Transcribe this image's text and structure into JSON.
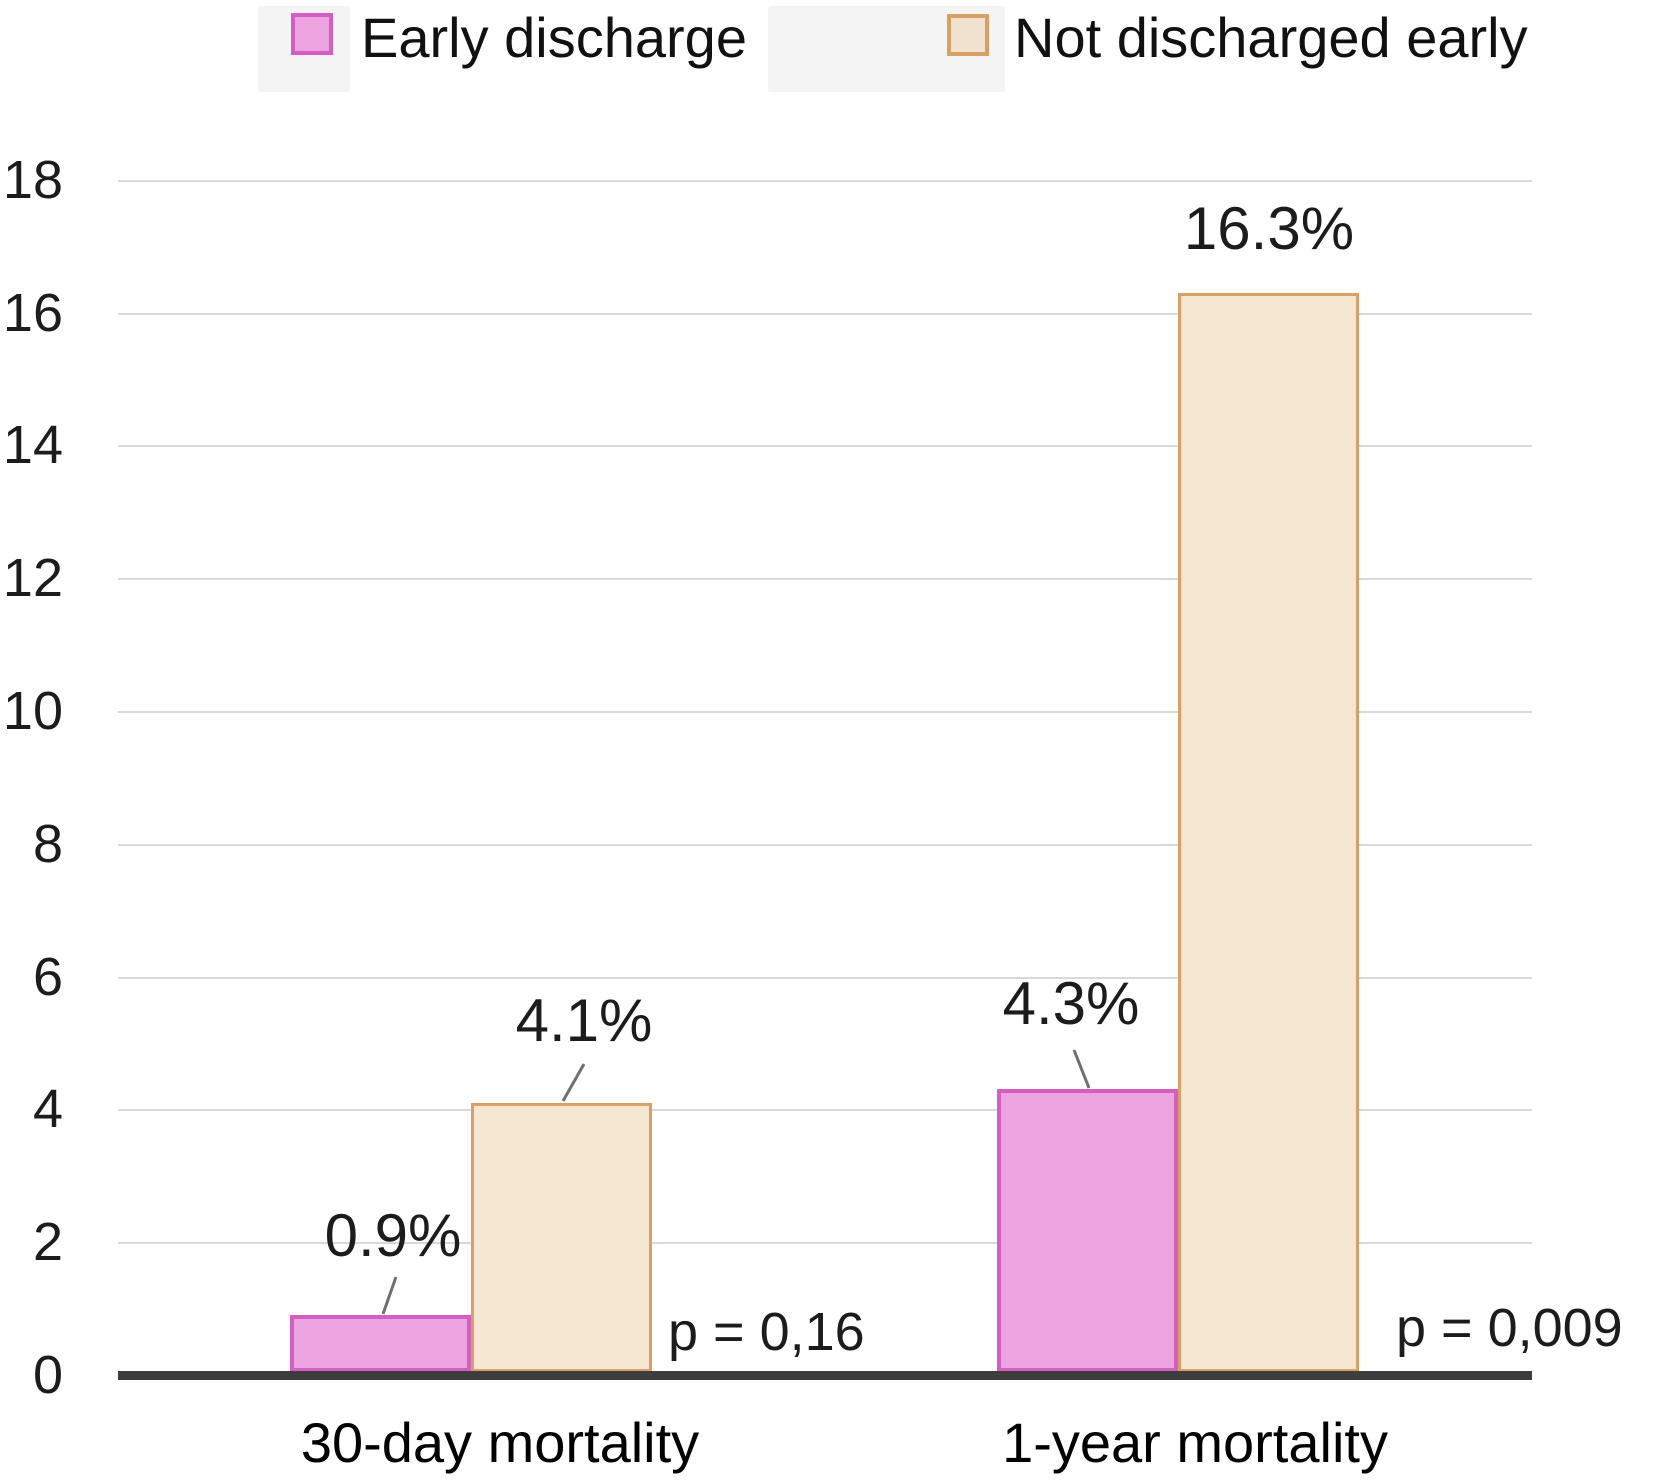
{
  "legend": {
    "items": [
      {
        "label": "Early discharge",
        "fill": "#eca4e1",
        "stroke": "#d45fc4"
      },
      {
        "label": "Not discharged early",
        "fill": "#f2e2d0",
        "stroke": "#d9a066"
      }
    ]
  },
  "chart_data": {
    "type": "bar",
    "categories": [
      "30-day mortality",
      "1-year mortality"
    ],
    "series": [
      {
        "name": "Early discharge",
        "values": [
          0.9,
          4.3
        ],
        "labels": [
          "0.9%",
          "4.3%"
        ],
        "fill": "#eca4e1",
        "stroke": "#d45fc4"
      },
      {
        "name": "Not discharged early",
        "values": [
          4.1,
          16.3
        ],
        "labels": [
          "4.1%",
          "16.3%"
        ],
        "fill": "#f5e6d2",
        "stroke": "#d9a066"
      }
    ],
    "annotations": [
      {
        "text": "p = 0,16",
        "category": "30-day mortality"
      },
      {
        "text": "p = 0,009",
        "category": "1-year mortality"
      }
    ],
    "title": "",
    "xlabel": "",
    "ylabel": "",
    "ylim": [
      0,
      18
    ],
    "yticks": [
      0,
      2,
      4,
      6,
      8,
      10,
      12,
      14,
      16,
      18
    ],
    "grid": "horizontal",
    "legend_position": "top",
    "colors": {
      "gridline": "#d9d9d9",
      "axis": "#3d3d3d",
      "leader_line": "#707070",
      "text": "#1c1c1c",
      "legend_bg": "#f5f4f4"
    }
  }
}
